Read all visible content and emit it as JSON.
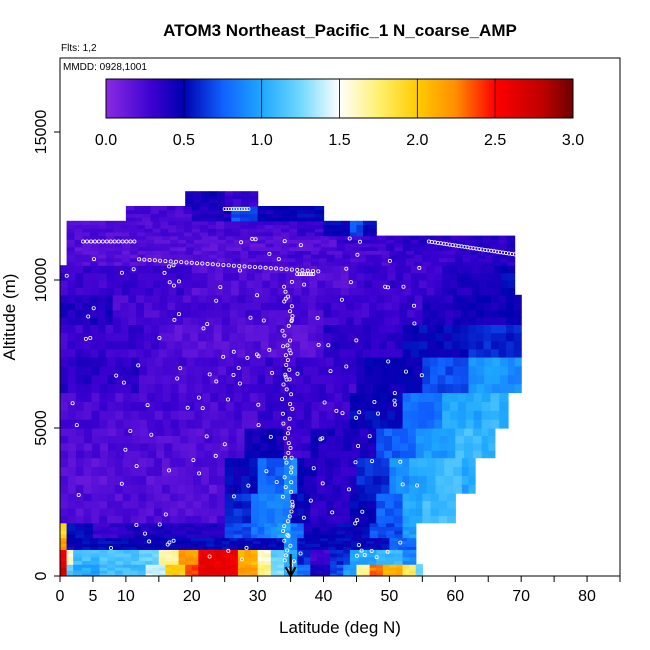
{
  "chart_data": {
    "type": "heatmap",
    "title": "ATOM3 Northeast_Pacific_1 N_coarse_AMP",
    "annotations": [
      "Flts: 1,2",
      "MMDD: 0928,1001"
    ],
    "xlabel": "Latitude (deg N)",
    "ylabel": "Altitude (m)",
    "xlim": [
      0,
      85
    ],
    "ylim": [
      0,
      17500
    ],
    "x_ticks": [
      {
        "value": 0,
        "label": "0"
      },
      {
        "value": 5,
        "label": "5"
      },
      {
        "value": 10,
        "label": "10"
      },
      {
        "value": 20,
        "label": "20"
      },
      {
        "value": 30,
        "label": "30"
      },
      {
        "value": 40,
        "label": "40"
      },
      {
        "value": 50,
        "label": "50"
      },
      {
        "value": 60,
        "label": "60"
      },
      {
        "value": 70,
        "label": "70"
      },
      {
        "value": 80,
        "label": "80"
      }
    ],
    "x_minor_ticks": [
      15,
      25,
      35,
      45,
      55,
      65,
      75,
      85
    ],
    "y_ticks": [
      {
        "value": 0,
        "label": "0"
      },
      {
        "value": 5000,
        "label": "5000"
      },
      {
        "value": 10000,
        "label": "10000"
      },
      {
        "value": 15000,
        "label": "15000"
      }
    ],
    "colorbar": {
      "min": 0.0,
      "max": 3.0,
      "ticks": [
        {
          "value": 0.0,
          "label": "0.0"
        },
        {
          "value": 0.5,
          "label": "0.5"
        },
        {
          "value": 1.0,
          "label": "1.0"
        },
        {
          "value": 1.5,
          "label": "1.5"
        },
        {
          "value": 2.0,
          "label": "2.0"
        },
        {
          "value": 2.5,
          "label": "2.5"
        },
        {
          "value": 3.0,
          "label": "3.0"
        }
      ],
      "stops": [
        {
          "v": 0.0,
          "c": "#8a2be2"
        },
        {
          "v": 0.3,
          "c": "#3a00d0"
        },
        {
          "v": 0.5,
          "c": "#0000b0"
        },
        {
          "v": 0.75,
          "c": "#1060ff"
        },
        {
          "v": 1.0,
          "c": "#1ea8ff"
        },
        {
          "v": 1.25,
          "c": "#70d8ff"
        },
        {
          "v": 1.5,
          "c": "#ffffff"
        },
        {
          "v": 1.75,
          "c": "#fff070"
        },
        {
          "v": 2.0,
          "c": "#ffcc00"
        },
        {
          "v": 2.25,
          "c": "#ff8c00"
        },
        {
          "v": 2.5,
          "c": "#ff0000"
        },
        {
          "v": 2.8,
          "c": "#c00000"
        },
        {
          "v": 3.0,
          "c": "#6e0000"
        }
      ]
    },
    "marker": {
      "type": "arrow-down",
      "latitude": 35
    },
    "bands": [
      {
        "alt": [
          0,
          400
        ],
        "segments": [
          [
            0,
            1,
            2.7
          ],
          [
            1,
            2,
            1.2
          ],
          [
            2,
            6,
            1.0
          ],
          [
            6,
            13,
            1.1
          ],
          [
            13,
            16,
            1.4
          ],
          [
            16,
            19,
            2.0
          ],
          [
            19,
            21,
            2.4
          ],
          [
            21,
            27,
            2.6
          ],
          [
            27,
            30,
            2.2
          ],
          [
            30,
            32,
            1.7
          ],
          [
            32,
            34,
            1.3
          ],
          [
            34,
            36,
            1.0
          ],
          [
            36,
            38,
            0.8
          ],
          [
            38,
            41,
            0.4
          ],
          [
            41,
            43,
            0.7
          ],
          [
            43,
            45,
            1.0
          ],
          [
            45,
            47,
            1.7
          ],
          [
            47,
            49,
            2.3
          ],
          [
            49,
            52,
            2.1
          ],
          [
            52,
            54,
            1.8
          ],
          [
            54,
            55,
            1.2
          ]
        ]
      },
      {
        "alt": [
          400,
          900
        ],
        "segments": [
          [
            0,
            1,
            2.6
          ],
          [
            1,
            2,
            1.6
          ],
          [
            2,
            6,
            1.1
          ],
          [
            6,
            12,
            1.15
          ],
          [
            12,
            15,
            1.2
          ],
          [
            15,
            18,
            1.7
          ],
          [
            18,
            21,
            2.2
          ],
          [
            21,
            27,
            2.6
          ],
          [
            27,
            30,
            2.1
          ],
          [
            30,
            32,
            1.6
          ],
          [
            32,
            34,
            1.2
          ],
          [
            34,
            36,
            1.0
          ],
          [
            36,
            38,
            0.6
          ],
          [
            38,
            41,
            0.3
          ],
          [
            41,
            44,
            0.6
          ],
          [
            44,
            48,
            1.0
          ],
          [
            48,
            52,
            1.1
          ],
          [
            52,
            54,
            0.9
          ]
        ]
      },
      {
        "alt": [
          900,
          1300
        ],
        "segments": [
          [
            0,
            1,
            2.2
          ],
          [
            1,
            34,
            0.5
          ],
          [
            34,
            36,
            0.9
          ],
          [
            36,
            50,
            0.5
          ],
          [
            50,
            54,
            0.75
          ]
        ]
      },
      {
        "alt": [
          1300,
          1800
        ],
        "segments": [
          [
            0,
            1,
            1.9
          ],
          [
            1,
            5,
            0.5
          ],
          [
            5,
            10,
            0.3
          ],
          [
            10,
            25,
            0.4
          ],
          [
            25,
            29,
            0.7
          ],
          [
            29,
            31,
            0.8
          ],
          [
            31,
            33,
            0.9
          ],
          [
            33,
            35,
            1.0
          ],
          [
            35,
            37,
            0.8
          ],
          [
            37,
            42,
            0.45
          ],
          [
            42,
            47,
            0.5
          ],
          [
            47,
            52,
            0.7
          ],
          [
            52,
            54,
            0.95
          ]
        ]
      },
      {
        "alt": [
          1800,
          2800
        ],
        "segments": [
          [
            0,
            25,
            0.22
          ],
          [
            25,
            29,
            0.6
          ],
          [
            29,
            35,
            0.85
          ],
          [
            35,
            38,
            0.5
          ],
          [
            38,
            44,
            0.35
          ],
          [
            44,
            48,
            0.5
          ],
          [
            48,
            52,
            0.75
          ],
          [
            52,
            55,
            1.0
          ],
          [
            55,
            60,
            1.1
          ]
        ]
      },
      {
        "alt": [
          2800,
          4000
        ],
        "segments": [
          [
            0,
            25,
            0.2
          ],
          [
            25,
            30,
            0.5
          ],
          [
            30,
            34,
            0.75
          ],
          [
            34,
            36,
            0.9
          ],
          [
            36,
            39,
            0.45
          ],
          [
            39,
            45,
            0.35
          ],
          [
            45,
            50,
            0.6
          ],
          [
            50,
            53,
            0.9
          ],
          [
            53,
            57,
            1.0
          ],
          [
            57,
            61,
            1.1
          ],
          [
            61,
            63,
            1.0
          ]
        ]
      },
      {
        "alt": [
          4000,
          5000
        ],
        "segments": [
          [
            0,
            28,
            0.22
          ],
          [
            28,
            34,
            0.45
          ],
          [
            34,
            38,
            0.3
          ],
          [
            38,
            48,
            0.4
          ],
          [
            48,
            54,
            0.75
          ],
          [
            54,
            60,
            0.95
          ],
          [
            60,
            64,
            1.1
          ],
          [
            64,
            66,
            1.05
          ]
        ]
      },
      {
        "alt": [
          5000,
          6200
        ],
        "segments": [
          [
            0,
            30,
            0.25
          ],
          [
            30,
            44,
            0.3
          ],
          [
            44,
            52,
            0.5
          ],
          [
            52,
            58,
            0.8
          ],
          [
            58,
            64,
            1.0
          ],
          [
            64,
            68,
            1.05
          ]
        ]
      },
      {
        "alt": [
          6200,
          7400
        ],
        "segments": [
          [
            0,
            12,
            0.35
          ],
          [
            12,
            30,
            0.25
          ],
          [
            30,
            45,
            0.3
          ],
          [
            45,
            55,
            0.45
          ],
          [
            55,
            62,
            0.7
          ],
          [
            62,
            68,
            0.95
          ],
          [
            68,
            70,
            0.9
          ]
        ]
      },
      {
        "alt": [
          7400,
          8500
        ],
        "segments": [
          [
            0,
            15,
            0.3
          ],
          [
            15,
            40,
            0.2
          ],
          [
            40,
            52,
            0.35
          ],
          [
            52,
            62,
            0.5
          ],
          [
            62,
            70,
            0.6
          ]
        ]
      },
      {
        "alt": [
          8500,
          9500
        ],
        "segments": [
          [
            0,
            8,
            0.4
          ],
          [
            8,
            40,
            0.25
          ],
          [
            40,
            55,
            0.3
          ],
          [
            55,
            62,
            0.4
          ],
          [
            62,
            70,
            0.45
          ]
        ]
      },
      {
        "alt": [
          9500,
          10500
        ],
        "segments": [
          [
            0,
            20,
            0.3
          ],
          [
            20,
            45,
            0.22
          ],
          [
            45,
            58,
            0.3
          ],
          [
            58,
            67,
            0.4
          ],
          [
            67,
            69,
            0.5
          ]
        ]
      },
      {
        "alt": [
          10500,
          11000
        ],
        "segments": [
          [
            1,
            25,
            0.2
          ],
          [
            25,
            50,
            0.25
          ],
          [
            50,
            60,
            0.3
          ],
          [
            60,
            69,
            0.35
          ]
        ]
      },
      {
        "alt": [
          11000,
          11500
        ],
        "segments": [
          [
            1,
            30,
            0.2
          ],
          [
            30,
            42,
            0.2
          ],
          [
            42,
            52,
            0.3
          ],
          [
            52,
            69,
            0.35
          ]
        ]
      },
      {
        "alt": [
          11500,
          12000
        ],
        "segments": [
          [
            1,
            20,
            0.22
          ],
          [
            20,
            36,
            0.25
          ],
          [
            36,
            40,
            0.3
          ],
          [
            40,
            44,
            0.5
          ],
          [
            44,
            46,
            0.7
          ],
          [
            46,
            48,
            0.5
          ]
        ]
      },
      {
        "alt": [
          12000,
          12500
        ],
        "segments": [
          [
            10,
            20,
            0.25
          ],
          [
            20,
            26,
            0.4
          ],
          [
            26,
            30,
            0.7
          ],
          [
            30,
            36,
            0.45
          ],
          [
            36,
            40,
            0.5
          ]
        ]
      },
      {
        "alt": [
          12500,
          13000
        ],
        "segments": [
          [
            19,
            25,
            0.45
          ],
          [
            25,
            30,
            0.3
          ]
        ]
      }
    ]
  }
}
